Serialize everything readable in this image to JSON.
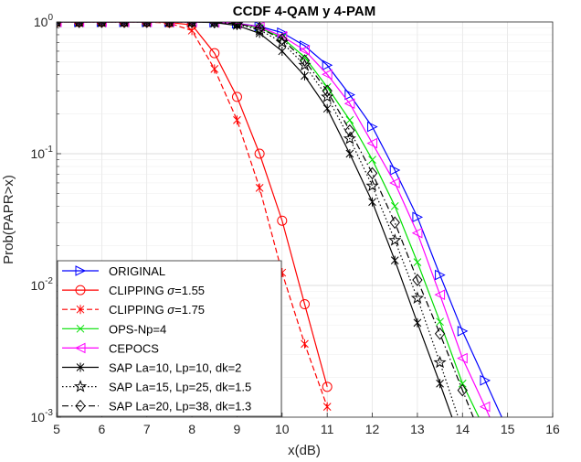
{
  "chart_data": {
    "type": "line",
    "title": "CCDF 4-QAM y 4-PAM",
    "xlabel": "x(dB)",
    "ylabel": "Prob(PAPR>x)",
    "xlim": [
      5,
      16
    ],
    "ylim": [
      0.001,
      1
    ],
    "yscale": "log",
    "grid": true,
    "legend_position": "bottom-left",
    "x_ticks": [
      5,
      6,
      7,
      8,
      9,
      10,
      11,
      12,
      13,
      14,
      15,
      16
    ],
    "x_tick_labels": [
      "5",
      "6",
      "7",
      "8",
      "9",
      "10",
      "11",
      "12",
      "13",
      "14",
      "15",
      "16"
    ],
    "y_ticks": [
      1,
      0.1,
      0.01,
      0.001
    ],
    "y_tick_labels": [
      {
        "base": "10",
        "exp": "0"
      },
      {
        "base": "10",
        "exp": "-1"
      },
      {
        "base": "10",
        "exp": "-2"
      },
      {
        "base": "10",
        "exp": "-3"
      }
    ],
    "series": [
      {
        "name": "ORIGINAL",
        "color": "#0000ff",
        "dash": "solid",
        "marker": "triangle-right",
        "x": [
          5,
          5.5,
          6,
          6.5,
          7,
          7.5,
          8,
          8.5,
          9,
          9.5,
          10,
          10.5,
          11,
          11.5,
          12,
          12.5,
          13,
          13.5,
          14,
          14.5,
          15
        ],
        "y": [
          1,
          1,
          1,
          1,
          1,
          1,
          1,
          0.995,
          0.975,
          0.925,
          0.83,
          0.66,
          0.47,
          0.28,
          0.16,
          0.075,
          0.033,
          0.012,
          0.0045,
          0.0019,
          0.0008
        ]
      },
      {
        "name": "CLIPPING σ=1.55",
        "color": "#ff0000",
        "dash": "solid",
        "marker": "circle",
        "x": [
          5,
          5.5,
          6,
          6.5,
          7,
          7.5,
          8,
          8.5,
          9,
          9.5,
          10,
          10.5,
          11
        ],
        "y": [
          1,
          1,
          1,
          1,
          1,
          0.99,
          0.95,
          0.58,
          0.27,
          0.1,
          0.031,
          0.0072,
          0.0017
        ]
      },
      {
        "name": "CLIPPING σ=1.75",
        "color": "#ff0000",
        "dash": "dashed",
        "marker": "asterisk",
        "x": [
          5,
          5.5,
          6,
          6.5,
          7,
          7.5,
          8,
          8.5,
          9,
          9.5,
          10,
          10.5,
          11
        ],
        "y": [
          1,
          1,
          1,
          1,
          1,
          0.98,
          0.86,
          0.44,
          0.18,
          0.055,
          0.0125,
          0.0036,
          0.0012
        ]
      },
      {
        "name": "OPS-Np=4",
        "color": "#00e000",
        "dash": "solid",
        "marker": "x",
        "x": [
          5,
          5.5,
          6,
          6.5,
          7,
          7.5,
          8,
          8.5,
          9,
          9.5,
          10,
          10.5,
          11,
          11.5,
          12,
          12.5,
          13,
          13.5,
          14,
          14.5
        ],
        "y": [
          1,
          1,
          1,
          1,
          1,
          1,
          1,
          0.995,
          0.97,
          0.9,
          0.76,
          0.54,
          0.32,
          0.18,
          0.09,
          0.04,
          0.015,
          0.0053,
          0.0018,
          0.0008
        ]
      },
      {
        "name": "CEPOCS",
        "color": "#ff00ff",
        "dash": "solid",
        "marker": "triangle-left",
        "x": [
          5,
          5.5,
          6,
          6.5,
          7,
          7.5,
          8,
          8.5,
          9,
          9.5,
          10,
          10.5,
          11,
          11.5,
          12,
          12.5,
          13,
          13.5,
          14,
          14.5,
          15
        ],
        "y": [
          1,
          1,
          1,
          1,
          1,
          1,
          1,
          0.995,
          0.975,
          0.92,
          0.78,
          0.61,
          0.4,
          0.24,
          0.12,
          0.06,
          0.025,
          0.0085,
          0.0028,
          0.0012,
          0.0005
        ]
      },
      {
        "name": "SAP La=10, Lp=10, dk=2",
        "color": "#000000",
        "dash": "solid",
        "marker": "asterisk",
        "x": [
          5,
          5.5,
          6,
          6.5,
          7,
          7.5,
          8,
          8.5,
          9,
          9.5,
          10,
          10.5,
          11,
          11.5,
          12,
          12.5,
          13,
          13.5,
          14
        ],
        "y": [
          1,
          1,
          1,
          1,
          1,
          1,
          1,
          0.99,
          0.94,
          0.82,
          0.6,
          0.39,
          0.22,
          0.1,
          0.043,
          0.0155,
          0.0052,
          0.0018,
          0.0006
        ]
      },
      {
        "name": "SAP La=15, Lp=25, dk=1.5",
        "color": "#000000",
        "dash": "dotted",
        "marker": "pentagram",
        "x": [
          5,
          5.5,
          6,
          6.5,
          7,
          7.5,
          8,
          8.5,
          9,
          9.5,
          10,
          10.5,
          11,
          11.5,
          12,
          12.5,
          13,
          13.5,
          14
        ],
        "y": [
          1,
          1,
          1,
          1,
          1,
          1,
          1,
          0.995,
          0.96,
          0.87,
          0.7,
          0.47,
          0.27,
          0.13,
          0.057,
          0.022,
          0.008,
          0.0026,
          0.0008
        ]
      },
      {
        "name": "SAP La=20, Lp=38, dk=1.3",
        "color": "#000000",
        "dash": "dashdot",
        "marker": "diamond",
        "x": [
          5,
          5.5,
          6,
          6.5,
          7,
          7.5,
          8,
          8.5,
          9,
          9.5,
          10,
          10.5,
          11,
          11.5,
          12,
          12.5,
          13,
          13.5,
          14,
          14.5
        ],
        "y": [
          1,
          1,
          1,
          1,
          1,
          1,
          1,
          0.995,
          0.97,
          0.9,
          0.74,
          0.51,
          0.3,
          0.15,
          0.071,
          0.03,
          0.011,
          0.0043,
          0.0016,
          0.0006
        ]
      }
    ]
  }
}
